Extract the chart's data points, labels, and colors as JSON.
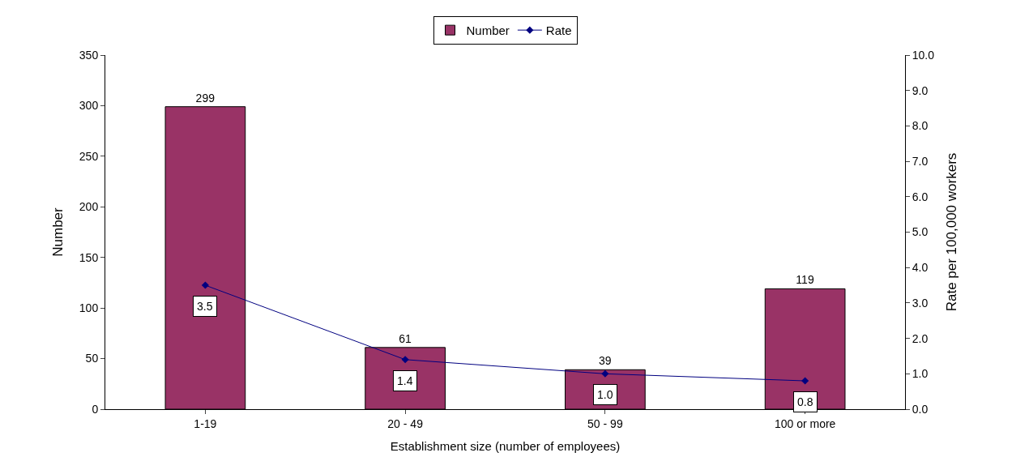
{
  "chart_data": {
    "type": "bar",
    "xlabel": "Establishment size (number of employees)",
    "ylabel": "Number",
    "y2label": "Rate per 100,000 workers",
    "categories": [
      "1-19",
      "20 - 49",
      "50 - 99",
      "100 or more"
    ],
    "series": [
      {
        "name": "Number",
        "color": "#993366",
        "values": [
          299,
          61,
          39,
          119
        ],
        "value_labels": [
          "299",
          "61",
          "39",
          "119"
        ]
      },
      {
        "name": "Rate",
        "type": "line",
        "axis": "y2",
        "color": "#000080",
        "values": [
          3.5,
          1.4,
          1.0,
          0.8
        ],
        "value_labels": [
          "3.5",
          "1.4",
          "1.0",
          "0.8"
        ],
        "marker": "diamond"
      }
    ],
    "ylim": [
      0,
      350
    ],
    "yticks": [
      0,
      50,
      100,
      150,
      200,
      250,
      300,
      350
    ],
    "y2lim": [
      0,
      10
    ],
    "y2ticks": [
      {
        "value": 0,
        "label": "0.0"
      },
      {
        "value": 1,
        "label": "1.0"
      },
      {
        "value": 2,
        "label": "2.0"
      },
      {
        "value": 3,
        "label": "3.0"
      },
      {
        "value": 4,
        "label": "4.0"
      },
      {
        "value": 5,
        "label": "5.0"
      },
      {
        "value": 6,
        "label": "6.0"
      },
      {
        "value": 7,
        "label": "7.0"
      },
      {
        "value": 8,
        "label": "8.0"
      },
      {
        "value": 9,
        "label": "9.0"
      },
      {
        "value": 10,
        "label": "10.0"
      }
    ],
    "legend": "top"
  }
}
